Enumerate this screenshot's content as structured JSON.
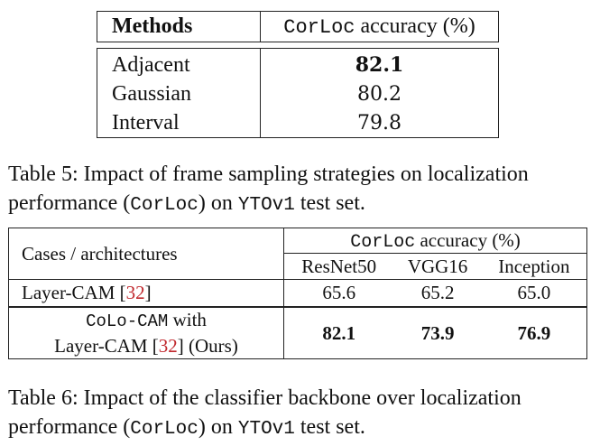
{
  "table5": {
    "header": {
      "methods": "Methods",
      "metric_mono": "CorLoc",
      "metric_suffix": " accuracy (%)"
    },
    "rows": [
      {
        "method": "Adjacent",
        "value": "82.1",
        "bold": true
      },
      {
        "method": "Gaussian",
        "value": "80.2",
        "bold": false
      },
      {
        "method": "Interval",
        "value": "79.8",
        "bold": false
      }
    ]
  },
  "caption5": {
    "line1": "Table 5: Impact of frame sampling strategies on localization",
    "line2_pre": "performance (",
    "line2_mono1": "CorLoc",
    "line2_mid": ") on ",
    "line2_mono2": "YTOv1",
    "line2_post": " test set."
  },
  "table6": {
    "header": {
      "cases": "Cases / architectures",
      "group_mono": "CorLoc",
      "group_suffix": " accuracy (%)",
      "arch": [
        "ResNet50",
        "VGG16",
        "Inception"
      ]
    },
    "row1": {
      "label_pre": "Layer-CAM [",
      "label_cite": "32",
      "label_post": "]",
      "values": [
        "65.6",
        "65.2",
        "65.0"
      ]
    },
    "row2": {
      "label_mono": "CoLo-CAM",
      "label_with": " with",
      "label2_pre": "Layer-CAM [",
      "label2_cite": "32",
      "label2_post": "] (Ours)",
      "values": [
        "82.1",
        "73.9",
        "76.9"
      ]
    }
  },
  "caption6": {
    "line1": "Table 6: Impact of the classifier backbone over localization",
    "line2_pre": "performance (",
    "line2_mono1": "CorLoc",
    "line2_mid": ") on ",
    "line2_mono2": "YTOv1",
    "line2_post": " test set."
  }
}
